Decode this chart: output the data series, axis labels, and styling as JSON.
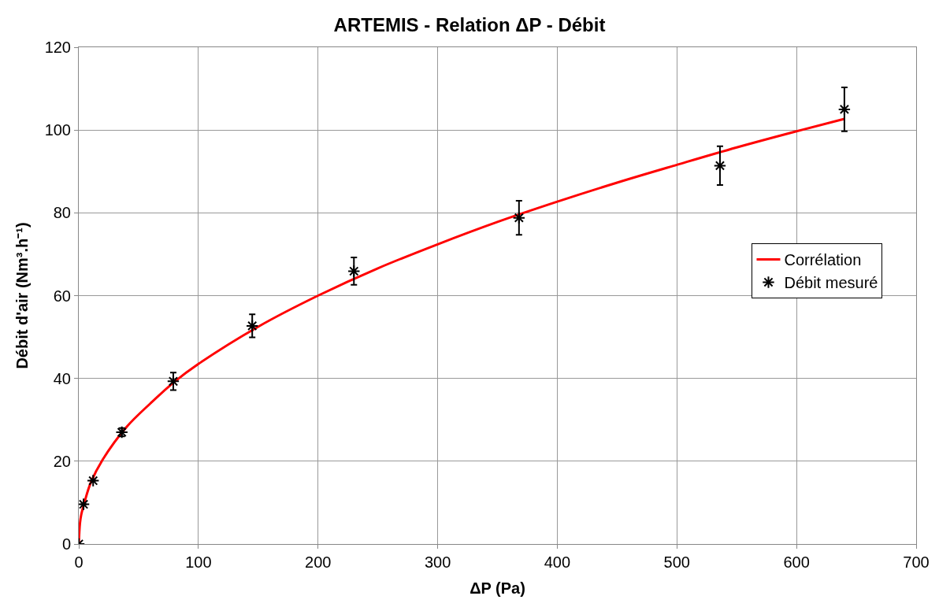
{
  "chart_data": {
    "type": "scatter",
    "title": "ARTEMIS - Relation ΔP - Débit",
    "xlabel": "ΔP (Pa)",
    "ylabel": "Débit d'air (Nm³.h⁻¹)",
    "xlim": [
      0,
      700
    ],
    "xticks": [
      0,
      100,
      200,
      300,
      400,
      500,
      600,
      700
    ],
    "ylim": [
      0,
      120
    ],
    "yticks": [
      0,
      20,
      40,
      60,
      80,
      100,
      120
    ],
    "grid": true,
    "legend": "right",
    "series": [
      {
        "name": "Corrélation",
        "type": "line",
        "color": "#ff0000",
        "marker": "none",
        "line_style": "solid",
        "x": [
          0,
          1,
          2,
          5,
          10,
          20,
          40,
          60,
          80,
          100,
          150,
          200,
          250,
          300,
          350,
          400,
          450,
          500,
          550,
          600,
          640
        ],
        "values": [
          0,
          5,
          7,
          10.3,
          14.8,
          20.4,
          28.3,
          34.0,
          39.2,
          43.5,
          52.5,
          60.0,
          66.6,
          72.4,
          77.8,
          82.7,
          87.3,
          91.6,
          95.8,
          99.7,
          102.7
        ]
      },
      {
        "name": "Débit mesuré",
        "type": "scatter",
        "color": "#000000",
        "marker": "cross",
        "x": [
          0,
          4,
          12,
          36,
          79,
          145,
          230,
          368,
          536,
          640
        ],
        "values": [
          0,
          9.6,
          15.3,
          27,
          39.3,
          52.7,
          65.9,
          78.8,
          91.4,
          105
        ],
        "errors": [
          null,
          null,
          null,
          1,
          2.1,
          2.8,
          3.3,
          4.1,
          4.7,
          5.3
        ]
      }
    ]
  }
}
